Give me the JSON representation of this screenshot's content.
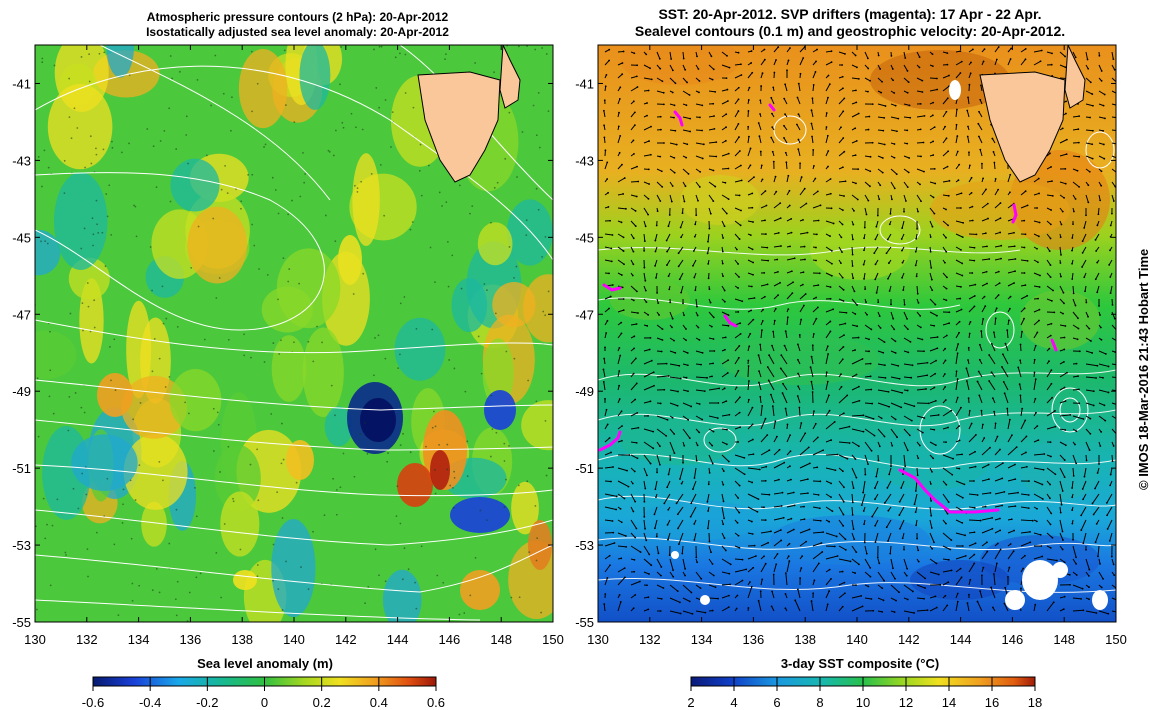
{
  "left_panel": {
    "title_line1": "Atmospheric pressure contours (2 hPa): 20-Apr-2012",
    "title_line2": "Isostatically adjusted sea level anomaly: 20-Apr-2012",
    "colorbar_label": "Sea level anomaly (m)",
    "colorbar_ticks": [
      "-0.6",
      "-0.4",
      "-0.2",
      "0",
      "0.2",
      "0.4",
      "0.6"
    ]
  },
  "right_panel": {
    "title_line1": "SST: 20-Apr-2012. SVP drifters (magenta): 17 Apr - 22 Apr.",
    "title_line2": "Sealevel contours (0.1 m) and geostrophic velocity: 20-Apr-2012.",
    "colorbar_label": "3-day SST composite (°C)",
    "colorbar_ticks": [
      "2",
      "4",
      "6",
      "8",
      "10",
      "12",
      "14",
      "16",
      "18"
    ]
  },
  "axes": {
    "lon_ticks": [
      "130",
      "132",
      "134",
      "136",
      "138",
      "140",
      "142",
      "144",
      "146",
      "148",
      "150"
    ],
    "lat_ticks": [
      "-41",
      "-43",
      "-45",
      "-47",
      "-49",
      "-51",
      "-53",
      "-55"
    ]
  },
  "map_extent": {
    "lon": [
      130,
      150
    ],
    "lat": [
      -55,
      -40
    ]
  },
  "credit": "© IMOS 18-Mar-2016 21:43 Hobart Time",
  "colors": {
    "land": "#f9c79a",
    "sla_low": "#0a2a8c",
    "sla_mid": "#34c048",
    "sla_high": "#b2200e",
    "sst_warm": "#e88a1a",
    "sst_cold": "#1060d8",
    "drifters": "#ff00ff",
    "contours": "#ffffff"
  }
}
